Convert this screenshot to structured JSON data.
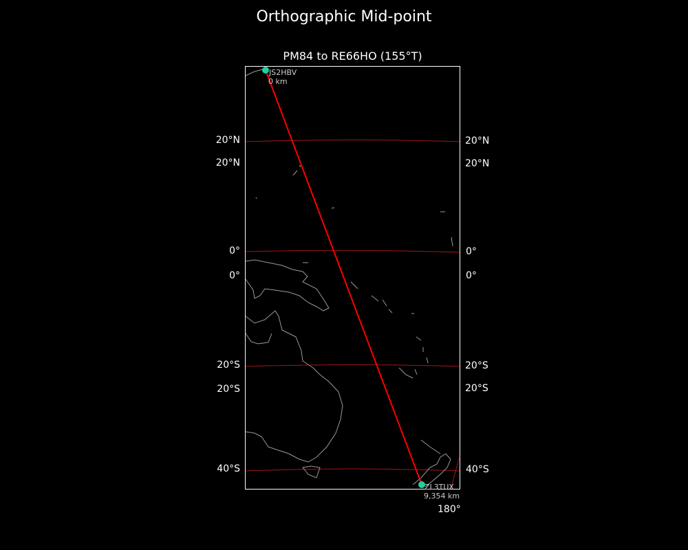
{
  "figure": {
    "title": "Orthographic Mid-point",
    "subtitle": "PM84 to RE66HO (155°T)"
  },
  "colors": {
    "background": "#000000",
    "path": "#ff0000",
    "gridlines": "#a01818",
    "coastline": "#9a9a9a",
    "station": "#20d0a0"
  },
  "gridline_labels": {
    "left": [
      "20°N",
      "20°N",
      "0°",
      "0°",
      "20°S",
      "20°S",
      "40°S"
    ],
    "right": [
      "20°N",
      "20°N",
      "0°",
      "0°",
      "20°S",
      "20°S",
      "40°S"
    ],
    "bottom": [
      "180°"
    ]
  },
  "stations": [
    {
      "call": "JS2HBV",
      "distance": "0 km"
    },
    {
      "call": "ZL3TUX",
      "distance": "9,354 km"
    }
  ]
}
